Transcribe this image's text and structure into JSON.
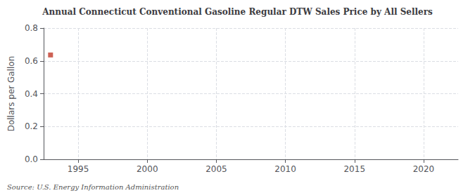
{
  "chart_data": {
    "type": "scatter",
    "title": "Annual Connecticut Conventional Gasoline Regular DTW Sales Price by All Sellers",
    "ylabel": "Dollars per Gallon",
    "annotations": [
      "Source: U.S. Energy Information Administration"
    ],
    "x": [
      1993.0
    ],
    "values": [
      0.636
    ],
    "color": "#c0392b",
    "marker": "square",
    "xlim": [
      1992.5,
      2022.5
    ],
    "ylim": [
      0.0,
      0.8
    ],
    "xticks": [
      1995,
      2000,
      2005,
      2010,
      2015,
      2020
    ],
    "yticks": [
      {
        "value": 0.0,
        "label": "0.0"
      },
      0.2,
      0.4,
      0.6,
      0.8
    ],
    "grid": true
  }
}
